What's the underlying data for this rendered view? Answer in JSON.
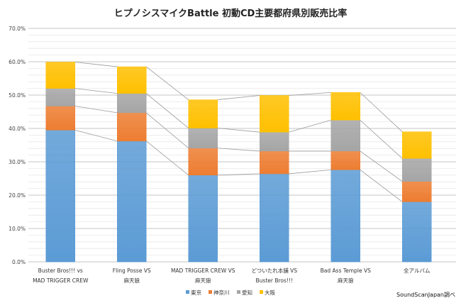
{
  "chart_data": {
    "type": "bar",
    "stacked": true,
    "title": "ヒプノシスマイクBattle  初動CD主要都府県別販売比率",
    "categories": [
      [
        "Buster Bros!!! vs",
        "MAD TRIGGER CREW"
      ],
      [
        "Fling Posse VS",
        "麻天狼"
      ],
      [
        "MAD TRIGGER CREW VS",
        "麻天狼"
      ],
      [
        "どついたれ本舗 VS",
        "Buster Bros!!!"
      ],
      [
        "Bad Ass Temple VS",
        "麻天狼"
      ],
      [
        "全アルバム"
      ]
    ],
    "series": [
      {
        "name": "東京",
        "color": "#5b9bd5",
        "values": [
          39.5,
          36.2,
          26.0,
          26.4,
          27.6,
          18.0
        ]
      },
      {
        "name": "神奈川",
        "color": "#ed7d31",
        "values": [
          7.2,
          8.5,
          8.1,
          6.8,
          5.6,
          6.1
        ]
      },
      {
        "name": "愛知",
        "color": "#a5a5a5",
        "values": [
          5.3,
          5.8,
          6.0,
          5.7,
          9.3,
          6.9
        ]
      },
      {
        "name": "大阪",
        "color": "#ffc000",
        "values": [
          7.9,
          8.0,
          8.5,
          11.0,
          8.3,
          8.0
        ]
      }
    ],
    "ylim": [
      0,
      70
    ],
    "yticks": [
      "0.0%",
      "10.0%",
      "20.0%",
      "30.0%",
      "40.0%",
      "50.0%",
      "60.0%",
      "70.0%"
    ],
    "grid": true,
    "series_lines": true,
    "legend": "bottom",
    "source": "SoundScanJapan調べ"
  }
}
